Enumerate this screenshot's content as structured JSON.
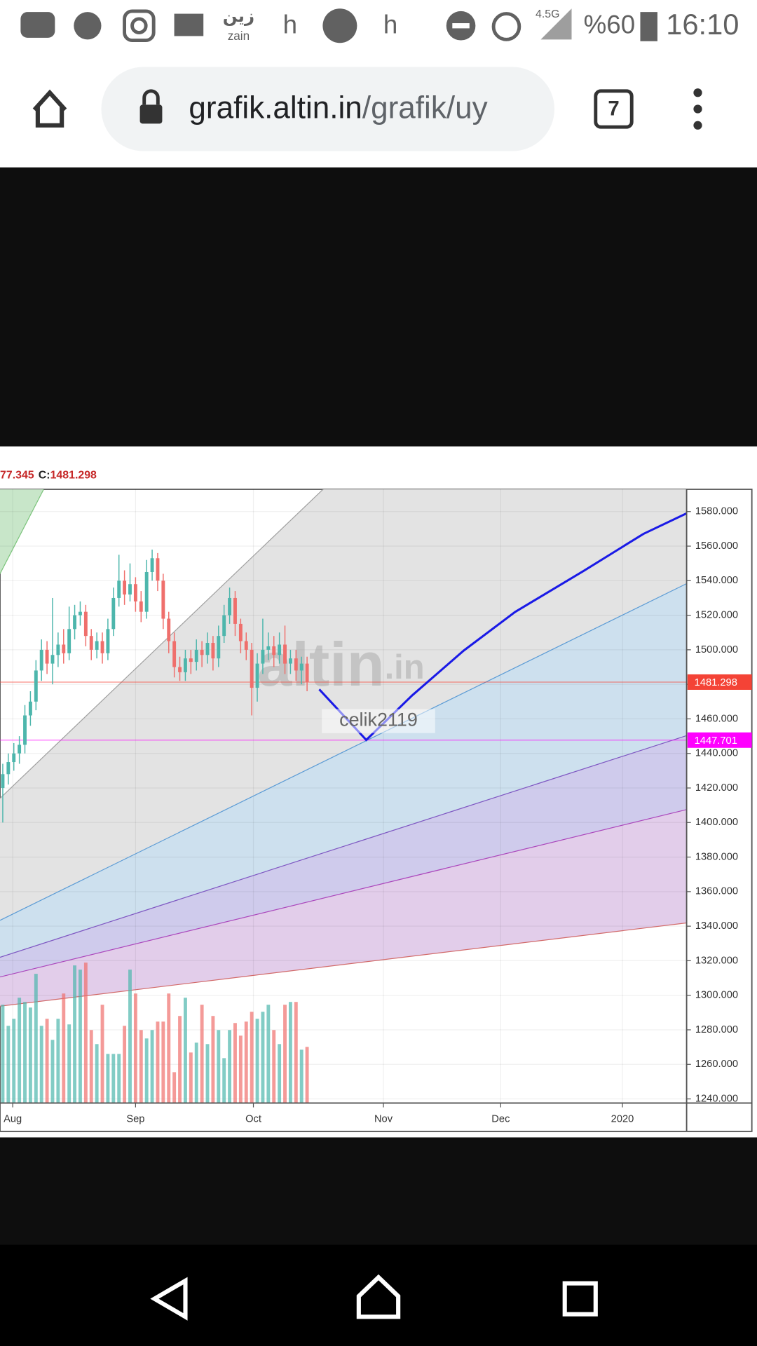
{
  "status_bar": {
    "carrier_ar": "زين",
    "carrier": "zain",
    "letters": [
      "h",
      "h"
    ],
    "network": "4.5G",
    "battery": "%60",
    "time": "16:10"
  },
  "browser": {
    "url_host": "grafik.altin.in",
    "url_path": "/grafik/uy",
    "tabs": 7
  },
  "chart_data": {
    "type": "candlestick",
    "header": {
      "prefix": "77.345",
      "close_label": "C:",
      "close": "1481.298"
    },
    "watermark": {
      "name": "altin",
      "suffix": ".in",
      "user": "celik2119"
    },
    "open": [
      1420,
      1428,
      1435,
      1440,
      1445,
      1462,
      1470,
      1488,
      1500,
      1492,
      1497,
      1503,
      1498,
      1512,
      1520,
      1522,
      1508,
      1500,
      1505,
      1498,
      1512,
      1530,
      1540,
      1532,
      1538,
      1528,
      1522,
      1545,
      1553,
      1540,
      1518,
      1505,
      1490,
      1487,
      1495,
      1493,
      1500,
      1497,
      1504,
      1495,
      1508,
      1520,
      1530,
      1515,
      1505,
      1500,
      1478,
      1492,
      1500,
      1502,
      1497,
      1503,
      1492,
      1495,
      1488,
      1492
    ],
    "high": [
      1434,
      1440,
      1446,
      1450,
      1468,
      1476,
      1494,
      1506,
      1505,
      1530,
      1510,
      1512,
      1525,
      1526,
      1528,
      1526,
      1512,
      1510,
      1510,
      1518,
      1536,
      1555,
      1546,
      1550,
      1542,
      1534,
      1552,
      1558,
      1556,
      1544,
      1522,
      1510,
      1496,
      1500,
      1500,
      1506,
      1505,
      1510,
      1508,
      1514,
      1526,
      1536,
      1534,
      1518,
      1510,
      1504,
      1498,
      1518,
      1510,
      1508,
      1510,
      1514,
      1500,
      1500,
      1496,
      1496
    ],
    "low": [
      1400,
      1422,
      1430,
      1434,
      1440,
      1456,
      1465,
      1482,
      1486,
      1480,
      1490,
      1492,
      1494,
      1506,
      1514,
      1502,
      1494,
      1495,
      1492,
      1494,
      1508,
      1525,
      1526,
      1528,
      1522,
      1516,
      1518,
      1540,
      1534,
      1512,
      1498,
      1484,
      1482,
      1482,
      1486,
      1488,
      1490,
      1492,
      1488,
      1490,
      1504,
      1515,
      1508,
      1498,
      1494,
      1462,
      1470,
      1486,
      1494,
      1490,
      1492,
      1486,
      1486,
      1482,
      1480,
      1476
    ],
    "close": [
      1428,
      1435,
      1440,
      1445,
      1462,
      1470,
      1488,
      1500,
      1492,
      1497,
      1503,
      1498,
      1512,
      1520,
      1522,
      1508,
      1500,
      1505,
      1498,
      1512,
      1530,
      1540,
      1532,
      1538,
      1528,
      1522,
      1545,
      1553,
      1540,
      1518,
      1505,
      1490,
      1487,
      1495,
      1493,
      1500,
      1497,
      1504,
      1495,
      1508,
      1520,
      1530,
      1515,
      1505,
      1500,
      1478,
      1492,
      1500,
      1502,
      1497,
      1503,
      1492,
      1495,
      1488,
      1492,
      1481.298
    ],
    "volume": [
      70,
      55,
      60,
      75,
      72,
      68,
      92,
      55,
      60,
      45,
      60,
      78,
      56,
      98,
      95,
      100,
      52,
      42,
      70,
      35,
      35,
      35,
      55,
      95,
      78,
      52,
      46,
      52,
      58,
      58,
      78,
      22,
      62,
      75,
      36,
      43,
      70,
      42,
      62,
      52,
      32,
      52,
      57,
      48,
      58,
      65,
      60,
      65,
      70,
      52,
      42,
      70,
      72,
      72,
      38,
      40
    ],
    "vlim": [
      0,
      110
    ],
    "up_color": "#4db6ac",
    "down_color": "#ef6f6c",
    "xlim": [
      -0.5,
      123.6
    ],
    "xticks": [
      {
        "value": 1.8,
        "label": "Aug"
      },
      {
        "value": 24,
        "label": "Sep"
      },
      {
        "value": 45.3,
        "label": "Oct"
      },
      {
        "value": 68.8,
        "label": "Nov"
      },
      {
        "value": 90,
        "label": "Dec"
      },
      {
        "value": 112,
        "label": "2020"
      }
    ],
    "ylim": [
      1237.6,
      1592.9
    ],
    "yticks": [
      {
        "value": 1240,
        "label": "1240.000"
      },
      {
        "value": 1260,
        "label": "1260.000"
      },
      {
        "value": 1280,
        "label": "1280.000"
      },
      {
        "value": 1300,
        "label": "1300.000"
      },
      {
        "value": 1320,
        "label": "1320.000"
      },
      {
        "value": 1340,
        "label": "1340.000"
      },
      {
        "value": 1360,
        "label": "1360.000"
      },
      {
        "value": 1380,
        "label": "1380.000"
      },
      {
        "value": 1400,
        "label": "1400.000"
      },
      {
        "value": 1420,
        "label": "1420.000"
      },
      {
        "value": 1440,
        "label": "1440.000"
      },
      {
        "value": 1460,
        "label": "1460.000"
      },
      {
        "value": 1480,
        "label": "1480.000"
      },
      {
        "value": 1500,
        "label": "1500.000"
      },
      {
        "value": 1520,
        "label": "1520.000"
      },
      {
        "value": 1540,
        "label": "1540.000"
      },
      {
        "value": 1560,
        "label": "1560.000"
      },
      {
        "value": 1580,
        "label": "1580.000"
      }
    ],
    "grid": true,
    "price_lines": [
      {
        "value": 1481.298,
        "color": "#f44336"
      },
      {
        "value": 1447.701,
        "color": "#ff00ff"
      }
    ],
    "fan_lines": [
      {
        "x": [
          -0.5,
          7.25
        ],
        "y": [
          1544,
          1592
        ],
        "color": "#7cc47c",
        "fill_above": "#c8e6c9"
      },
      {
        "x": [
          -0.5,
          57.6
        ],
        "y": [
          1414,
          1592
        ],
        "color": "#a0a0a0",
        "fill_below": "#e3e3e3"
      },
      {
        "x": [
          -0.5,
          123.6
        ],
        "y": [
          1343.4,
          1538.3
        ],
        "color": "#5b9bd5",
        "fill_below": "#cde0ee"
      },
      {
        "x": [
          -0.5,
          123.6
        ],
        "y": [
          1322,
          1450.3
        ],
        "color": "#7e57c2",
        "fill_below": "#cfcbec"
      },
      {
        "x": [
          -0.5,
          123.6
        ],
        "y": [
          1310.6,
          1407.5
        ],
        "color": "#ab47bc",
        "fill_below": "#e2cdea"
      },
      {
        "x": [
          -0.5,
          123.6
        ],
        "y": [
          1293.7,
          1341.9
        ],
        "color": "#d26a6a",
        "fill_below": "#eccaca"
      }
    ],
    "projection": {
      "color": "#1a1ae6",
      "x": [
        57.2,
        65.7,
        74.0,
        83.3,
        92.6,
        105.0,
        115.8,
        123.6
      ],
      "y": [
        1477.1,
        1447.8,
        1473.6,
        1499.5,
        1521.9,
        1545.7,
        1567.1,
        1579.0
      ]
    }
  }
}
